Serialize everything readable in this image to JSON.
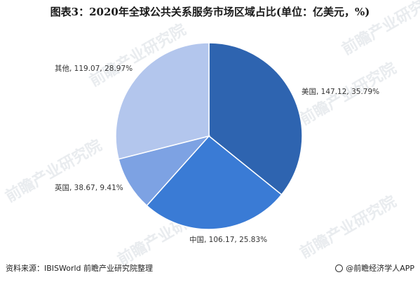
{
  "title": "图表3：2020年全球公共关系服务市场区域占比(单位：亿美元，%)",
  "source": "资料来源：IBISWorld 前瞻产业研究院整理",
  "brand": "@前瞻经济学人APP",
  "watermarks": [
    "前瞻产业研究院",
    "前瞻产业研究院",
    "前瞻产业研究院",
    "前瞻产业研究院",
    "前瞻产业研究院",
    "前瞻产业研究院"
  ],
  "chart_data": {
    "type": "pie",
    "title": "图表3：2020年全球公共关系服务市场区域占比(单位：亿美元，%)",
    "slices": [
      {
        "label": "美国",
        "value": 147.12,
        "percent": 35.79,
        "text": "美国, 147.12, 35.79%",
        "color": "#2e64b0"
      },
      {
        "label": "中国",
        "value": 106.17,
        "percent": 25.83,
        "text": "中国, 106.17, 25.83%",
        "color": "#3a7bd5"
      },
      {
        "label": "英国",
        "value": 38.67,
        "percent": 9.41,
        "text": "英国, 38.67, 9.41%",
        "color": "#7da2e3"
      },
      {
        "label": "其他",
        "value": 119.07,
        "percent": 28.97,
        "text": "其他, 119.07, 28.97%",
        "color": "#b3c6ed"
      }
    ]
  }
}
